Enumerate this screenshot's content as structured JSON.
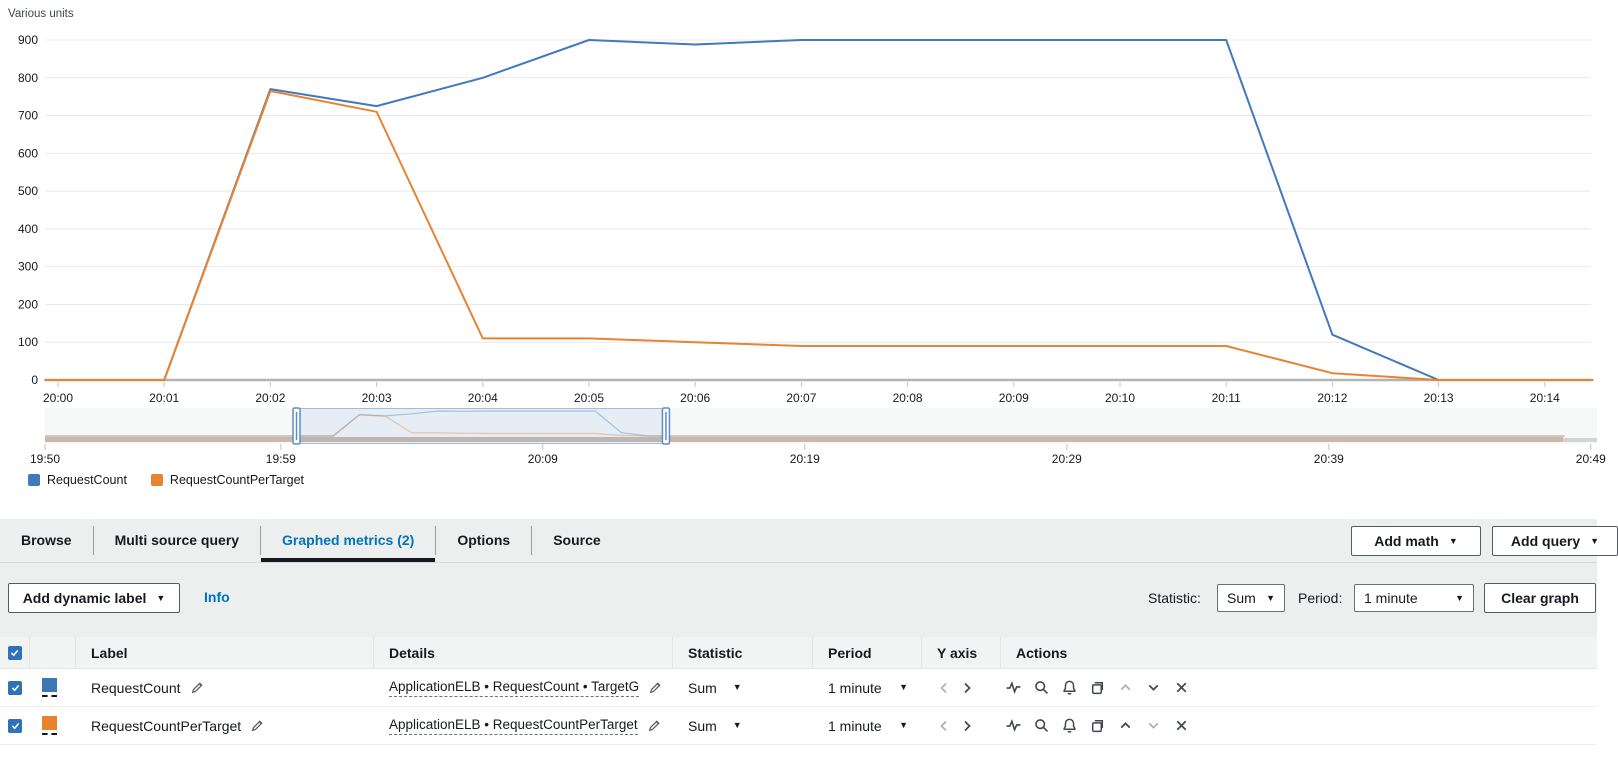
{
  "chart_data": {
    "type": "line",
    "title": "",
    "ylabel": "Various units",
    "ylim": [
      0,
      900
    ],
    "grid": true,
    "legend_position": "bottom-left",
    "y_ticks": [
      900,
      800,
      700,
      600,
      500,
      400,
      300,
      200,
      100,
      0
    ],
    "x_tick_labels": [
      "20:00",
      "20:01",
      "20:02",
      "20:03",
      "20:04",
      "20:05",
      "20:06",
      "20:07",
      "20:08",
      "20:09",
      "20:10",
      "20:11",
      "20:12",
      "20:13",
      "20:14"
    ],
    "series": [
      {
        "name": "RequestCount",
        "color": "#4179bd",
        "x_minutes": [
          -0.12,
          0,
          1,
          2,
          3,
          4,
          5,
          6,
          7,
          8,
          9,
          10,
          11,
          12,
          13,
          14,
          14.45
        ],
        "values": [
          0,
          0,
          0,
          770,
          725,
          800,
          900,
          888,
          900,
          900,
          900,
          900,
          900,
          120,
          0,
          0,
          0
        ]
      },
      {
        "name": "RequestCountPerTarget",
        "color": "#e8842f",
        "x_minutes": [
          -0.12,
          0,
          1,
          2,
          3,
          4,
          5,
          6,
          7,
          8,
          9,
          10,
          11,
          12,
          13,
          14,
          14.45
        ],
        "values": [
          0,
          0,
          0,
          765,
          710,
          110,
          110,
          100,
          90,
          90,
          90,
          90,
          90,
          18,
          0,
          0,
          0
        ]
      }
    ],
    "timeline": {
      "tick_labels": [
        "19:50",
        "19:59",
        "20:09",
        "20:19",
        "20:29",
        "20:39",
        "20:49"
      ],
      "tick_minutes": [
        0,
        9,
        19,
        29,
        39,
        49,
        59
      ],
      "range_minutes": [
        0,
        58
      ],
      "selection_minutes": [
        9.6,
        23.7
      ],
      "series_offset_minutes": 10
    }
  },
  "tabs": {
    "items": [
      {
        "label": "Browse",
        "active": false
      },
      {
        "label": "Multi source query",
        "active": false
      },
      {
        "label": "Graphed metrics (2)",
        "active": true
      },
      {
        "label": "Options",
        "active": false
      },
      {
        "label": "Source",
        "active": false
      }
    ]
  },
  "toolbar": {
    "add_math": "Add math",
    "add_query": "Add query"
  },
  "controls": {
    "add_dynamic_label": "Add dynamic label",
    "info": "Info",
    "statistic_label": "Statistic:",
    "statistic_value": "Sum",
    "period_label": "Period:",
    "period_value": "1 minute",
    "clear_graph": "Clear graph"
  },
  "table": {
    "headers": {
      "label": "Label",
      "details": "Details",
      "statistic": "Statistic",
      "period": "Period",
      "y_axis": "Y axis",
      "actions": "Actions"
    },
    "rows": [
      {
        "checked": true,
        "color": "#3b78b3",
        "label": "RequestCount",
        "details": "ApplicationELB • RequestCount • TargetG",
        "statistic": "Sum",
        "period": "1 minute"
      },
      {
        "checked": true,
        "color": "#e8822d",
        "label": "RequestCountPerTarget",
        "details": "ApplicationELB • RequestCountPerTarget",
        "statistic": "Sum",
        "period": "1 minute"
      }
    ]
  }
}
